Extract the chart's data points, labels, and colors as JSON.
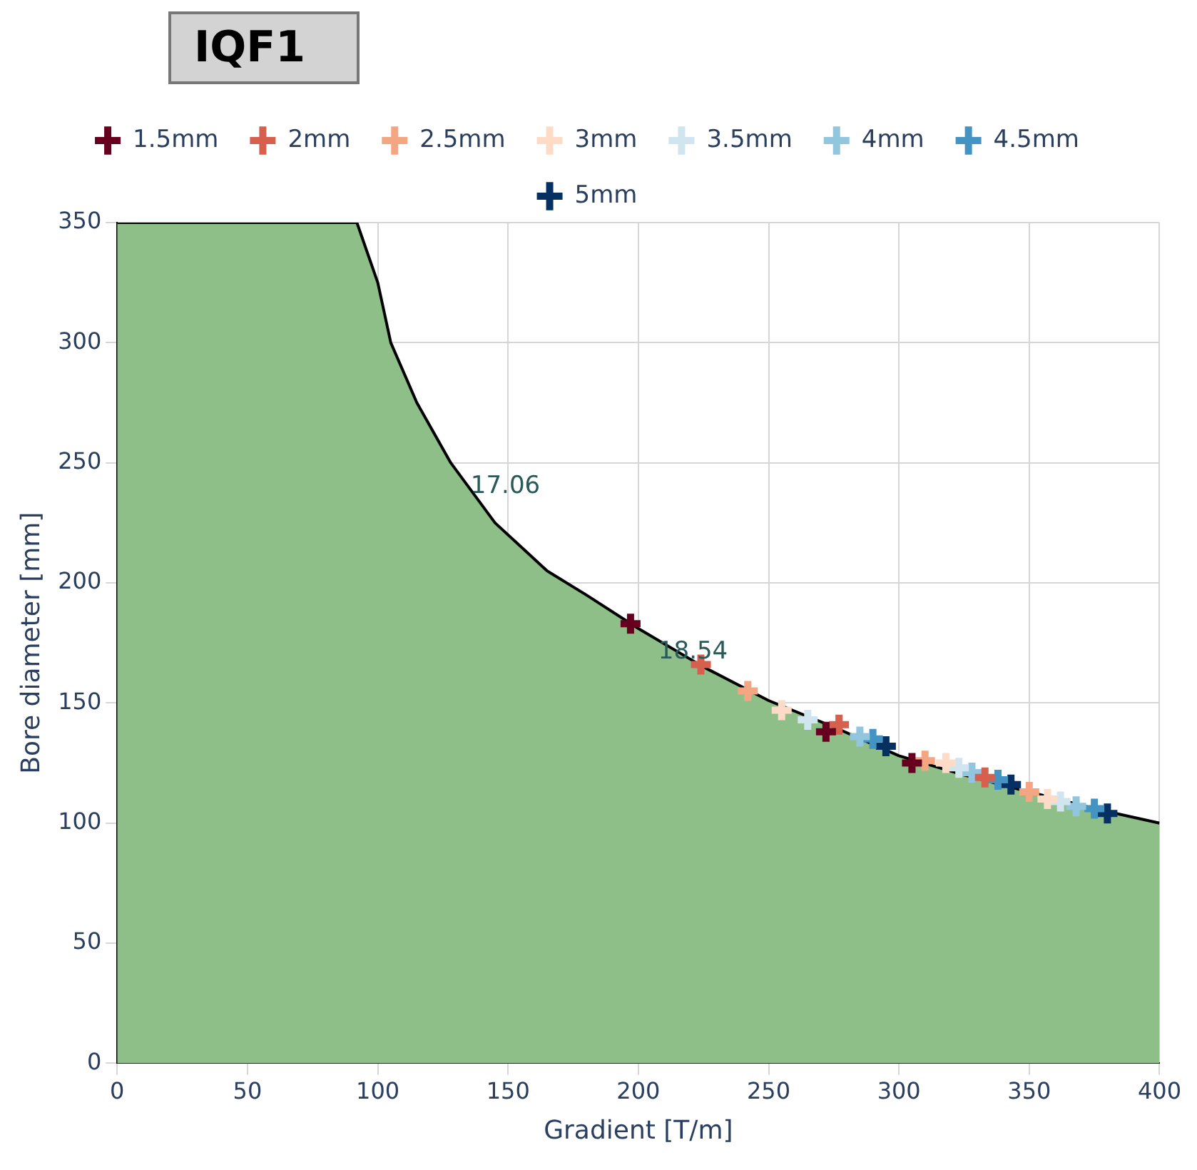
{
  "chart_data": {
    "type": "scatter",
    "title": "IQF1",
    "xlabel": "Gradient [T/m]",
    "ylabel": "Bore diameter [mm]",
    "xlim": [
      0,
      400
    ],
    "xticks": [
      0,
      50,
      100,
      150,
      200,
      250,
      300,
      350,
      400
    ],
    "ylim": [
      0,
      350
    ],
    "yticks": [
      0,
      50,
      100,
      150,
      200,
      250,
      300,
      350
    ],
    "grid": true,
    "legend": "top",
    "marker": "cross",
    "annotations": [
      {
        "text": "17.06",
        "x": 128,
        "y": 250
      },
      {
        "text": "18.54",
        "x": 200,
        "y": 181
      }
    ],
    "series": [
      {
        "type": "area",
        "marker": "none",
        "color": "#8fbf88",
        "x": [
          0,
          92,
          100,
          105,
          115,
          128,
          145,
          165,
          180,
          200,
          225,
          250,
          275,
          300,
          325,
          350,
          375,
          400
        ],
        "values": [
          350,
          350,
          325,
          300,
          275,
          250,
          225,
          205,
          195,
          181,
          165,
          151,
          140,
          128,
          120,
          113,
          106,
          100
        ]
      },
      {
        "name": "1.5mm",
        "color": "#67001f",
        "x": [
          197,
          272,
          305
        ],
        "values": [
          183,
          138,
          125
        ]
      },
      {
        "name": "2mm",
        "color": "#d6604d",
        "x": [
          224,
          277,
          333
        ],
        "values": [
          166,
          141,
          119
        ]
      },
      {
        "name": "2.5mm",
        "color": "#f4a582",
        "x": [
          242,
          310,
          350
        ],
        "values": [
          155,
          126,
          113
        ]
      },
      {
        "name": "3mm",
        "color": "#fddbc7",
        "x": [
          255,
          318,
          357
        ],
        "values": [
          147,
          125,
          110
        ]
      },
      {
        "name": "3.5mm",
        "color": "#d1e5f0",
        "x": [
          265,
          323,
          362
        ],
        "values": [
          143,
          123,
          109
        ]
      },
      {
        "name": "4mm",
        "color": "#92c5de",
        "x": [
          285,
          328,
          368
        ],
        "values": [
          136,
          121,
          107
        ]
      },
      {
        "name": "4.5mm",
        "color": "#4393c3",
        "x": [
          290,
          338,
          375
        ],
        "values": [
          135,
          118,
          106
        ]
      },
      {
        "name": "5mm",
        "color": "#053061",
        "x": [
          295,
          343,
          380
        ],
        "values": [
          132,
          116,
          104
        ]
      }
    ]
  }
}
